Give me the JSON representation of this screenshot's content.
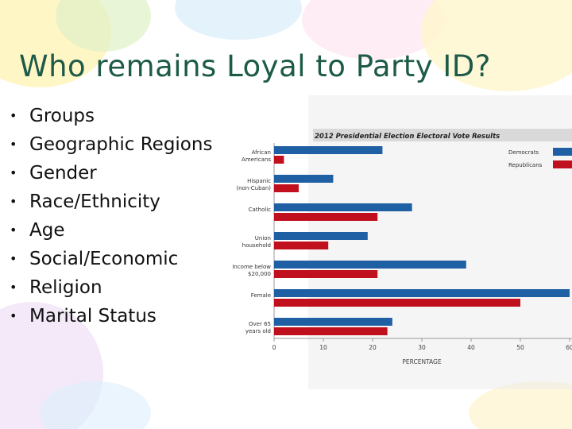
{
  "slide": {
    "title": "Who remains Loyal to Party ID?",
    "bullets": [
      "Groups",
      "Geographic Regions",
      "Gender",
      "Race/Ethnicity",
      "Age",
      "Social/Economic",
      "Religion",
      "Marital Status"
    ],
    "bullet_glyph": "•"
  },
  "colors": {
    "democrats": "#1f5fa3",
    "republicans": "#c0101e",
    "title": "#1d5a48"
  },
  "chart_data": {
    "type": "bar",
    "orientation": "horizontal",
    "title": "2012 Presidential Election Electoral Vote Results",
    "xlabel": "PERCENTAGE",
    "xlim": [
      0,
      60
    ],
    "xticks": [
      0,
      10,
      20,
      30,
      40,
      50,
      60
    ],
    "categories": [
      "African Americans",
      "Hispanic (non-Cuban)",
      "Catholic",
      "Union household",
      "Income below $20,000",
      "Female",
      "Over 65 years old"
    ],
    "series": [
      {
        "name": "Democrats",
        "color": "#1f5fa3",
        "values": [
          22,
          12,
          28,
          19,
          39,
          60,
          24
        ]
      },
      {
        "name": "Republicans",
        "color": "#c0101e",
        "values": [
          2,
          5,
          21,
          11,
          21,
          50,
          23
        ]
      }
    ],
    "legend_position": "top-right"
  }
}
